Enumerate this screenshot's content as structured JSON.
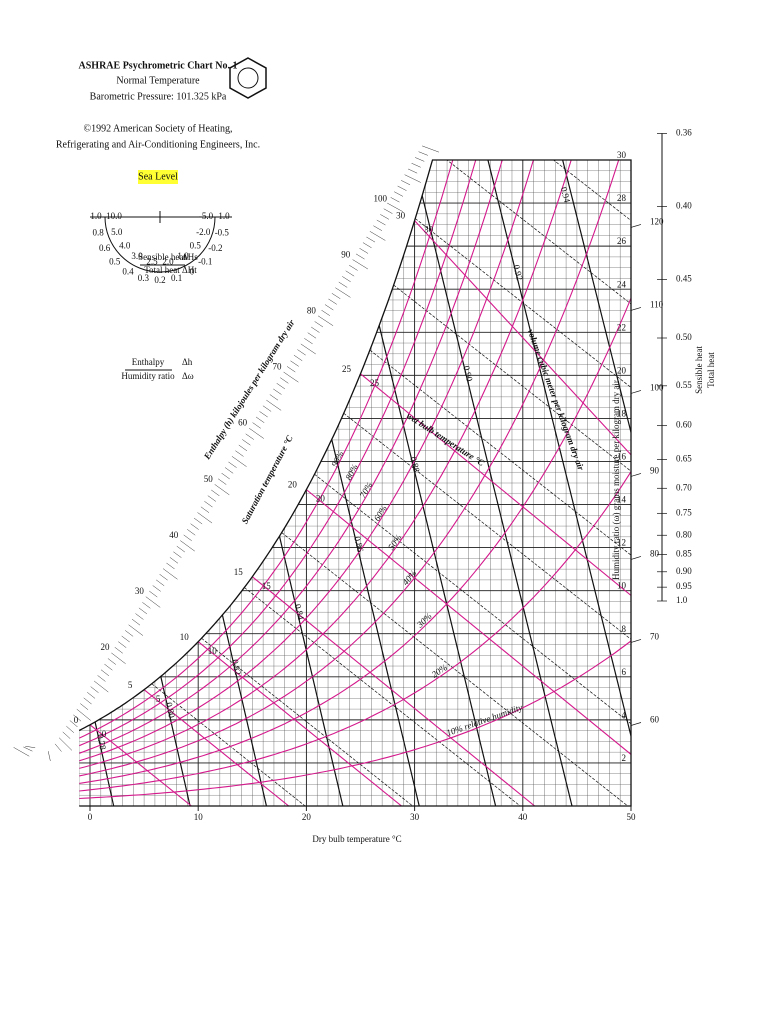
{
  "header": {
    "title": "ASHRAE Psychrometric Chart No. 1",
    "subtitle": "Normal Temperature",
    "pressure_text": "Barometric Pressure: 101.325 kPa",
    "copyright": [
      "©1992 American Society of Heating,",
      "Refrigerating and Air-Conditioning Engineers, Inc."
    ],
    "sea_level": "Sea Level"
  },
  "protractor": {
    "outer": [
      "1.0",
      "0.8",
      "0.6",
      "0.5",
      "0.4",
      "0.3",
      "0.2",
      "0.1",
      "0",
      "-0.1",
      "-0.2",
      "-0.5",
      "1.0"
    ],
    "inner": [
      "10.0",
      "5.0",
      "4.0",
      "3.0",
      "2.5",
      "2.0",
      "1.0",
      "0.5",
      "-2.0",
      "-5.0"
    ],
    "shr_num": "Sensible heat",
    "shr_den": "Total heat",
    "dh_num": "ΔHs",
    "dh_den": "ΔHt",
    "enth_num": "Enthalpy",
    "enth_den": "Humidity ratio",
    "ratio_num": "Δh",
    "ratio_den": "Δω"
  },
  "chart_data": {
    "type": "psychrometric",
    "x_label": "Dry bulb temperature °C",
    "y_label": "Humidity ratio (ω) grams moisture per kilogram dry air",
    "enthalpy_label": "Enthalpy (h) kilojoules per kilogram dry air",
    "saturation_label": "Saturation temperature °C",
    "wet_bulb_label": "wet bulb temperature °C",
    "volume_label": "volume cubic meter per kilogram dry air",
    "pressure": 101.325,
    "xlim": [
      0,
      50
    ],
    "xticks": [
      0,
      10,
      20,
      30,
      40,
      50
    ],
    "ylim": [
      0,
      30
    ],
    "yticks": [
      2,
      4,
      6,
      8,
      10,
      12,
      14,
      16,
      18,
      20,
      22,
      24,
      26,
      28,
      30
    ],
    "rh_curves": [
      10,
      20,
      30,
      40,
      50,
      60,
      70,
      80,
      90
    ],
    "rh_labels": [
      "10% relative humidity",
      "20%",
      "30%",
      "40%",
      "50%",
      "60%",
      "70%",
      "80%",
      "90%"
    ],
    "wet_bulb": [
      0,
      5,
      10,
      15,
      20,
      25,
      30
    ],
    "enthalpy": [
      20,
      30,
      40,
      50,
      60,
      70,
      80,
      90,
      100,
      110,
      120
    ],
    "volume": [
      {
        "value": 0.78,
        "label": "0.78"
      },
      {
        "value": 0.8,
        "label": "0.80"
      },
      {
        "value": 0.82,
        "label": "0.82"
      },
      {
        "value": 0.84,
        "label": "0.84"
      },
      {
        "value": 0.86,
        "label": "0.86"
      },
      {
        "value": 0.88,
        "label": "0.88"
      },
      {
        "value": 0.9,
        "label": "0.90"
      },
      {
        "value": 0.92,
        "label": "0.92"
      },
      {
        "value": 0.94,
        "label": "0.94"
      }
    ],
    "shr_ticks": [
      0.36,
      {
        "value": 0.4,
        "label": "0.40"
      },
      0.45,
      {
        "value": 0.5,
        "label": "0.50"
      },
      0.55,
      {
        "value": 0.6,
        "label": "0.60"
      },
      0.65,
      {
        "value": 0.7,
        "label": "0.70"
      },
      0.75,
      {
        "value": 0.8,
        "label": "0.80"
      },
      0.85,
      {
        "value": 0.9,
        "label": "0.90"
      },
      0.95,
      {
        "value": 1,
        "label": "1.0"
      }
    ],
    "shr_num": "Sensible heat",
    "shr_den": "Total heat"
  }
}
